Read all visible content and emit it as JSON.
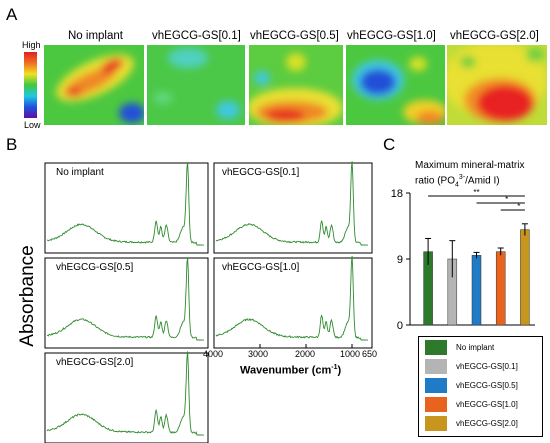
{
  "panels": {
    "a": "A",
    "b": "B",
    "c": "C"
  },
  "heatmap": {
    "scale_high": "High",
    "scale_low": "Low",
    "titles": [
      "No implant",
      "vhEGCG-GS[0.1]",
      "vhEGCG-GS[0.5]",
      "vhEGCG-GS[1.0]",
      "vhEGCG-GS[2.0]"
    ]
  },
  "ftir": {
    "ylabel": "Absorbance",
    "panel_labels": [
      "No implant",
      "vhEGCG-GS[0.1]",
      "vhEGCG-GS[0.5]",
      "vhEGCG-GS[1.0]",
      "vhEGCG-GS[2.0]"
    ],
    "xticks": [
      "4000",
      "3000",
      "2000",
      "1000",
      "650"
    ],
    "xlabel": "Wavenumber (cm",
    "xlabel_sup": "-1",
    "xlabel_end": ")",
    "line_color": "#2e8b2e"
  },
  "chart_data": {
    "type": "bar",
    "title_line1": "Maximum mineral-matrix",
    "title_line2_pre": "ratio (PO",
    "title_line2_sub": "4",
    "title_line2_sup": "3-",
    "title_line2_post": "/Amid I)",
    "categories": [
      "No implant",
      "vhEGCG-GS[0.1]",
      "vhEGCG-GS[0.5]",
      "vhEGCG-GS[1.0]",
      "vhEGCG-GS[2.0]"
    ],
    "values": [
      10.0,
      9.0,
      9.5,
      10.0,
      13.0
    ],
    "errors": [
      1.8,
      2.5,
      0.4,
      0.5,
      0.8
    ],
    "colors": [
      "#2d7a2d",
      "#b4b4b4",
      "#1f7bc6",
      "#e8641e",
      "#c8961e"
    ],
    "ylim": [
      0,
      18
    ],
    "yticks": [
      "0",
      "9",
      "18"
    ],
    "significance": [
      {
        "from": 0,
        "to": 4,
        "label": "**"
      },
      {
        "from": 2,
        "to": 4,
        "label": "*"
      },
      {
        "from": 3,
        "to": 4,
        "label": "*"
      }
    ]
  }
}
